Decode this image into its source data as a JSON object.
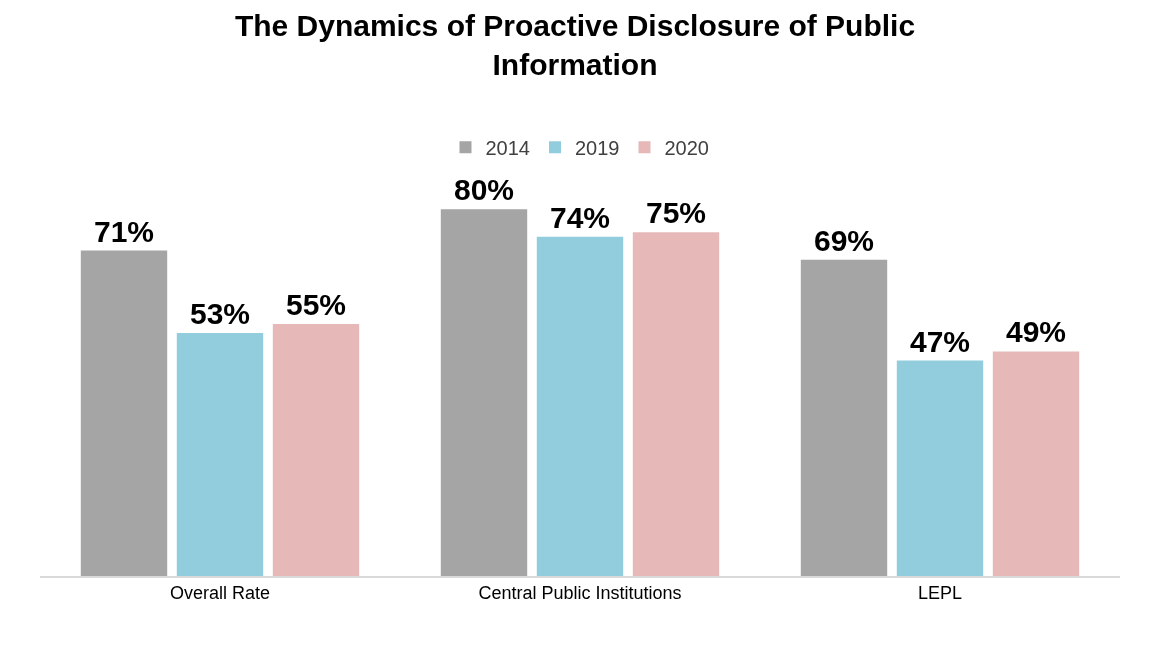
{
  "chart_data": {
    "type": "bar",
    "title": "The Dynamics of Proactive Disclosure of Public Information",
    "categories": [
      "Overall Rate",
      "Central Public Institutions",
      "LEPL"
    ],
    "series": [
      {
        "name": "2014",
        "color": "#a5a5a5",
        "values": [
          71,
          80,
          69
        ],
        "value_labels": [
          "71%",
          "80%",
          "69%"
        ]
      },
      {
        "name": "2019",
        "color": "#92cddd",
        "values": [
          53,
          74,
          47
        ],
        "value_labels": [
          "53%",
          "74%",
          "47%"
        ]
      },
      {
        "name": "2020",
        "color": "#e6b9b8",
        "values": [
          55,
          75,
          49
        ],
        "value_labels": [
          "55%",
          "75%",
          "49%"
        ]
      }
    ],
    "legend": "top"
  }
}
